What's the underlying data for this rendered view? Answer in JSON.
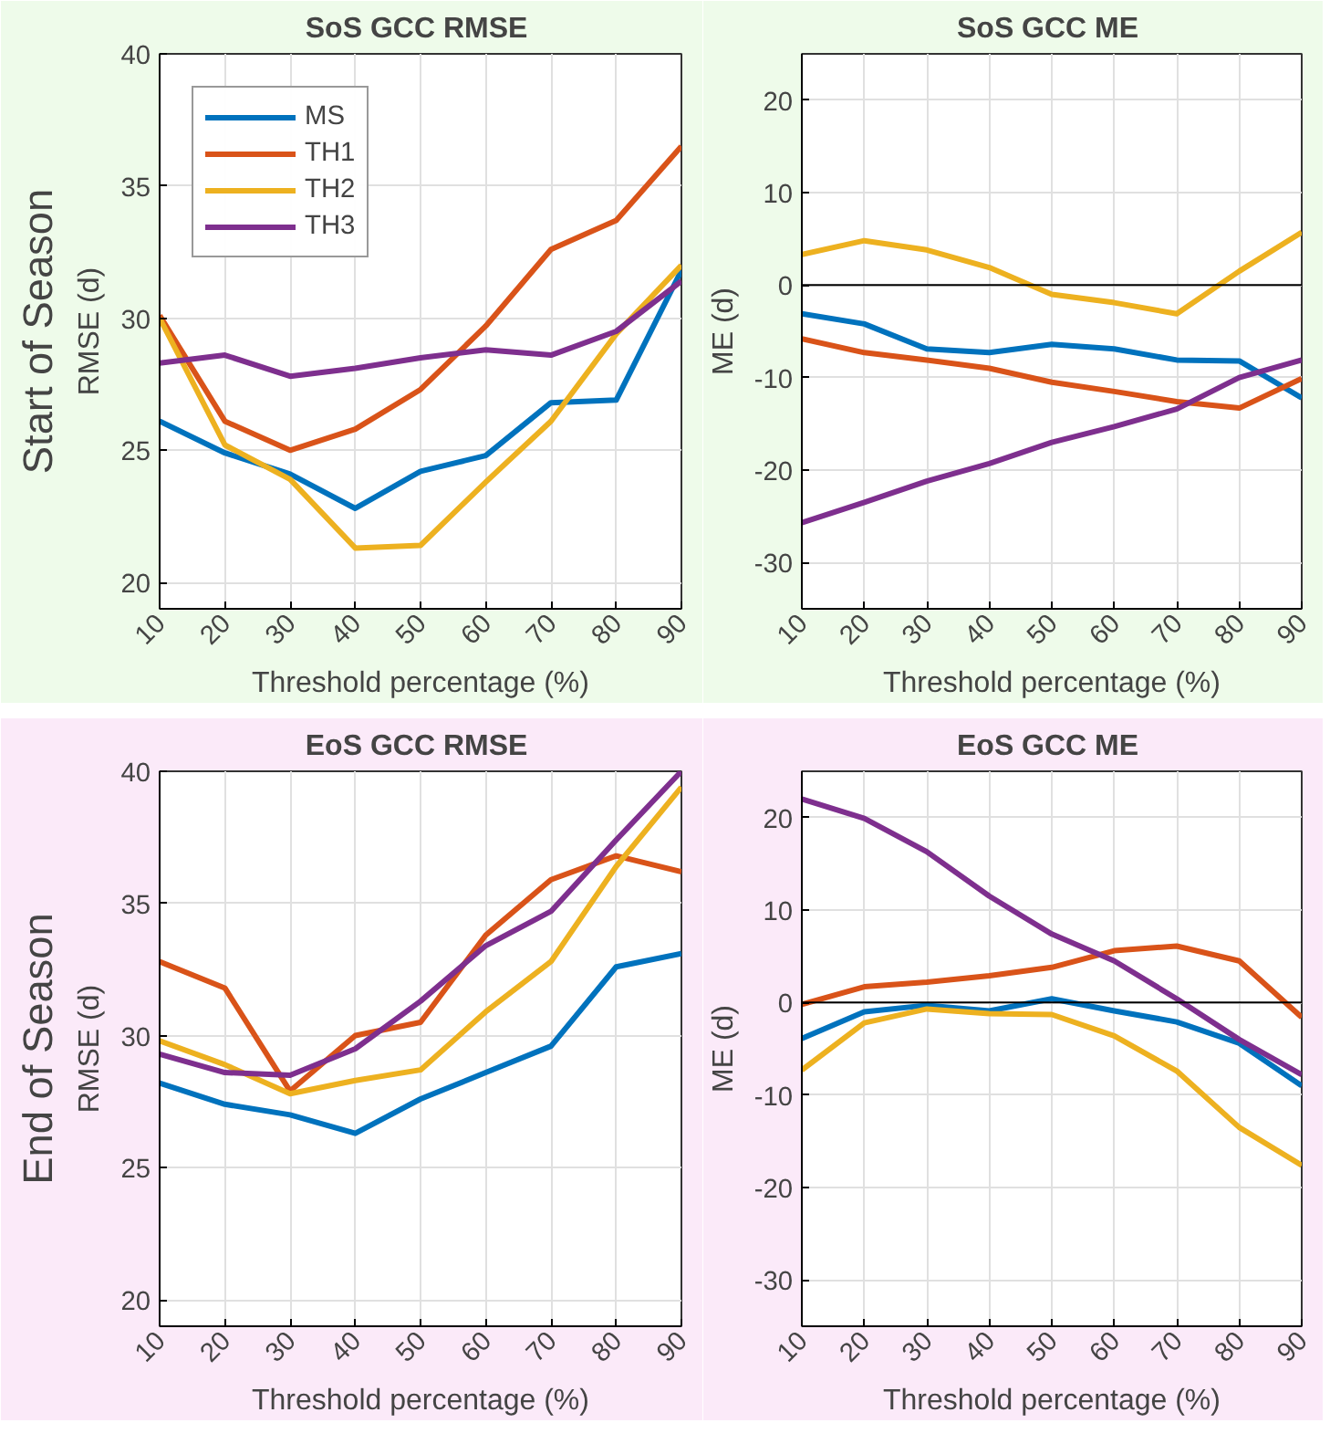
{
  "chart_data": [
    {
      "type": "line",
      "title": "SoS  GCC RMSE",
      "xlabel": "Threshold percentage (%)",
      "ylabel": "RMSE (d)",
      "annotations": [
        "Start of Season"
      ],
      "x": [
        10,
        20,
        30,
        40,
        50,
        60,
        70,
        80,
        90
      ],
      "xlim": [
        10,
        90
      ],
      "xticks": [
        10,
        20,
        30,
        40,
        50,
        60,
        70,
        80,
        90
      ],
      "ylim": [
        19,
        40
      ],
      "yticks": [
        20,
        25,
        30,
        35,
        40
      ],
      "grid": true,
      "legend": "top left",
      "series": [
        {
          "name": "MS",
          "color": "#0072bd",
          "values": [
            26.1,
            24.9,
            24.1,
            22.8,
            24.2,
            24.8,
            26.8,
            26.9,
            31.8
          ]
        },
        {
          "name": "TH1",
          "color": "#d95319",
          "values": [
            30.1,
            26.1,
            25.0,
            25.8,
            27.3,
            29.7,
            32.6,
            33.7,
            36.5
          ]
        },
        {
          "name": "TH2",
          "color": "#edb120",
          "values": [
            30.0,
            25.2,
            23.9,
            21.3,
            21.4,
            23.8,
            26.1,
            29.4,
            32.0
          ]
        },
        {
          "name": "TH3",
          "color": "#7e2f8e",
          "values": [
            28.3,
            28.6,
            27.8,
            28.1,
            28.5,
            28.8,
            28.6,
            29.5,
            31.4
          ]
        }
      ]
    },
    {
      "type": "line",
      "title": "SoS  GCC ME",
      "xlabel": "Threshold percentage (%)",
      "ylabel": "ME (d)",
      "x": [
        10,
        20,
        30,
        40,
        50,
        60,
        70,
        80,
        90
      ],
      "xlim": [
        10,
        90
      ],
      "xticks": [
        10,
        20,
        30,
        40,
        50,
        60,
        70,
        80,
        90
      ],
      "ylim": [
        -35,
        25
      ],
      "yticks": [
        -30,
        -20,
        -10,
        0,
        10,
        20
      ],
      "grid": true,
      "ref_lines": [
        {
          "axis": "y",
          "value": 0,
          "color": "#000000"
        }
      ],
      "series": [
        {
          "color": "#0072bd",
          "values": [
            -3.1,
            -4.2,
            -6.9,
            -7.3,
            -6.4,
            -6.9,
            -8.1,
            -8.2,
            -12.2
          ]
        },
        {
          "color": "#d95319",
          "values": [
            -5.8,
            -7.3,
            -8.1,
            -9.0,
            -10.5,
            -11.5,
            -12.6,
            -13.3,
            -10.1
          ]
        },
        {
          "color": "#edb120",
          "values": [
            3.3,
            4.8,
            3.8,
            1.9,
            -1.0,
            -1.9,
            -3.1,
            1.5,
            5.7
          ]
        },
        {
          "color": "#7e2f8e",
          "values": [
            -25.7,
            -23.5,
            -21.2,
            -19.3,
            -17.0,
            -15.3,
            -13.4,
            -10.0,
            -8.1
          ]
        }
      ]
    },
    {
      "type": "line",
      "title": "EoS  GCC RMSE",
      "xlabel": "Threshold percentage (%)",
      "ylabel": "RMSE (d)",
      "annotations": [
        "End of Season"
      ],
      "x": [
        10,
        20,
        30,
        40,
        50,
        60,
        70,
        80,
        90
      ],
      "xlim": [
        10,
        90
      ],
      "xticks": [
        10,
        20,
        30,
        40,
        50,
        60,
        70,
        80,
        90
      ],
      "ylim": [
        19,
        40
      ],
      "yticks": [
        20,
        25,
        30,
        35,
        40
      ],
      "grid": true,
      "series": [
        {
          "color": "#0072bd",
          "values": [
            28.2,
            27.4,
            27.0,
            26.3,
            27.6,
            28.6,
            29.6,
            32.6,
            33.1
          ]
        },
        {
          "color": "#d95319",
          "values": [
            32.8,
            31.8,
            27.9,
            30.0,
            30.5,
            33.8,
            35.9,
            36.8,
            36.2
          ]
        },
        {
          "color": "#edb120",
          "values": [
            29.8,
            28.9,
            27.8,
            28.3,
            28.7,
            30.9,
            32.8,
            36.4,
            39.4
          ]
        },
        {
          "color": "#7e2f8e",
          "values": [
            29.3,
            28.6,
            28.5,
            29.5,
            31.3,
            33.4,
            34.7,
            37.4,
            40.0
          ]
        }
      ]
    },
    {
      "type": "line",
      "title": "EoS  GCC ME",
      "xlabel": "Threshold percentage (%)",
      "ylabel": "ME (d)",
      "x": [
        10,
        20,
        30,
        40,
        50,
        60,
        70,
        80,
        90
      ],
      "xlim": [
        10,
        90
      ],
      "xticks": [
        10,
        20,
        30,
        40,
        50,
        60,
        70,
        80,
        90
      ],
      "ylim": [
        -35,
        25
      ],
      "yticks": [
        -30,
        -20,
        -10,
        0,
        10,
        20
      ],
      "grid": true,
      "ref_lines": [
        {
          "axis": "y",
          "value": 0,
          "color": "#000000"
        }
      ],
      "series": [
        {
          "color": "#0072bd",
          "values": [
            -3.9,
            -1.0,
            -0.3,
            -0.9,
            0.4,
            -0.9,
            -2.1,
            -4.4,
            -9.0
          ]
        },
        {
          "color": "#d95319",
          "values": [
            -0.2,
            1.7,
            2.2,
            2.9,
            3.8,
            5.6,
            6.1,
            4.5,
            -1.6
          ]
        },
        {
          "color": "#edb120",
          "values": [
            -7.3,
            -2.2,
            -0.7,
            -1.2,
            -1.3,
            -3.6,
            -7.4,
            -13.5,
            -17.6
          ]
        },
        {
          "color": "#7e2f8e",
          "values": [
            22.0,
            19.9,
            16.3,
            11.5,
            7.4,
            4.5,
            0.4,
            -4.0,
            -7.8
          ]
        }
      ]
    }
  ]
}
